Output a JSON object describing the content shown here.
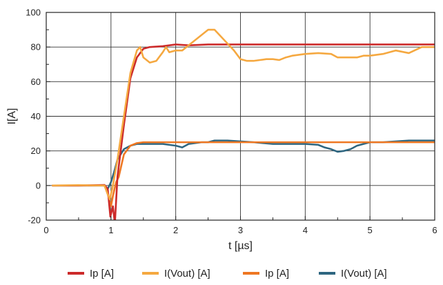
{
  "chart_data": {
    "type": "line",
    "xlabel": "t [µs]",
    "ylabel": "I[A]",
    "xlim": [
      0,
      6
    ],
    "ylim": [
      -20,
      100
    ],
    "x_ticks": [
      "0",
      "1",
      "2",
      "3",
      "4",
      "5",
      "6"
    ],
    "y_ticks": [
      "-20",
      "0",
      "20",
      "40",
      "60",
      "80",
      "100"
    ],
    "grid": true,
    "legend_position": "bottom",
    "series": [
      {
        "name": "Ip [A]",
        "color": "#cc2a2a",
        "points": [
          [
            0.1,
            0
          ],
          [
            0.5,
            0
          ],
          [
            0.9,
            0.3
          ],
          [
            0.95,
            -2
          ],
          [
            0.99,
            -18
          ],
          [
            1.03,
            -12
          ],
          [
            1.06,
            -22
          ],
          [
            1.1,
            5
          ],
          [
            1.2,
            35
          ],
          [
            1.3,
            62
          ],
          [
            1.4,
            74
          ],
          [
            1.5,
            79
          ],
          [
            1.6,
            80
          ],
          [
            1.8,
            80.5
          ],
          [
            2.0,
            81.5
          ],
          [
            2.2,
            81
          ],
          [
            2.5,
            81.5
          ],
          [
            3.0,
            81.5
          ],
          [
            3.5,
            81.5
          ],
          [
            4.0,
            81.5
          ],
          [
            4.5,
            81.5
          ],
          [
            5.0,
            81.5
          ],
          [
            5.5,
            81.5
          ],
          [
            6.0,
            81.5
          ]
        ]
      },
      {
        "name": "I(Vout) [A]",
        "color": "#f5a840",
        "points": [
          [
            0.1,
            0
          ],
          [
            0.5,
            0.2
          ],
          [
            0.9,
            0
          ],
          [
            0.98,
            -8
          ],
          [
            1.02,
            -2
          ],
          [
            1.1,
            15
          ],
          [
            1.2,
            40
          ],
          [
            1.3,
            65
          ],
          [
            1.4,
            78
          ],
          [
            1.45,
            80
          ],
          [
            1.5,
            74
          ],
          [
            1.6,
            71
          ],
          [
            1.7,
            72
          ],
          [
            1.8,
            77
          ],
          [
            1.85,
            80
          ],
          [
            1.9,
            77
          ],
          [
            2.0,
            78
          ],
          [
            2.1,
            78
          ],
          [
            2.2,
            81
          ],
          [
            2.3,
            84
          ],
          [
            2.4,
            87
          ],
          [
            2.5,
            90
          ],
          [
            2.6,
            90
          ],
          [
            2.7,
            86
          ],
          [
            2.8,
            82
          ],
          [
            2.9,
            78
          ],
          [
            3.0,
            73
          ],
          [
            3.1,
            72
          ],
          [
            3.2,
            72
          ],
          [
            3.3,
            72.5
          ],
          [
            3.4,
            73
          ],
          [
            3.5,
            73
          ],
          [
            3.6,
            72.5
          ],
          [
            3.7,
            74
          ],
          [
            3.8,
            75
          ],
          [
            4.0,
            76
          ],
          [
            4.2,
            76.5
          ],
          [
            4.4,
            76
          ],
          [
            4.5,
            74
          ],
          [
            4.6,
            74
          ],
          [
            4.8,
            74
          ],
          [
            4.9,
            75
          ],
          [
            5.0,
            75
          ],
          [
            5.2,
            76
          ],
          [
            5.4,
            78
          ],
          [
            5.6,
            76.5
          ],
          [
            5.8,
            80
          ],
          [
            6.0,
            80
          ]
        ]
      },
      {
        "name": "Ip [A]",
        "color": "#ee7722",
        "points": [
          [
            0.1,
            0
          ],
          [
            0.5,
            0
          ],
          [
            0.9,
            0
          ],
          [
            0.95,
            -5
          ],
          [
            1.0,
            -12
          ],
          [
            1.03,
            -6
          ],
          [
            1.08,
            2
          ],
          [
            1.12,
            5
          ],
          [
            1.2,
            18
          ],
          [
            1.3,
            23
          ],
          [
            1.4,
            24.5
          ],
          [
            1.5,
            25
          ],
          [
            1.7,
            25
          ],
          [
            2.0,
            25
          ],
          [
            2.5,
            25
          ],
          [
            3.0,
            25
          ],
          [
            3.5,
            25
          ],
          [
            4.0,
            25
          ],
          [
            4.5,
            25
          ],
          [
            5.0,
            25
          ],
          [
            5.5,
            25
          ],
          [
            6.0,
            25
          ]
        ]
      },
      {
        "name": "I(Vout) [A]",
        "color": "#2e6680",
        "points": [
          [
            0.1,
            0
          ],
          [
            0.5,
            0
          ],
          [
            0.9,
            0
          ],
          [
            0.95,
            -2
          ],
          [
            1.0,
            2
          ],
          [
            1.05,
            8
          ],
          [
            1.1,
            15
          ],
          [
            1.2,
            21
          ],
          [
            1.3,
            23
          ],
          [
            1.4,
            24
          ],
          [
            1.6,
            24
          ],
          [
            1.8,
            24
          ],
          [
            2.0,
            23
          ],
          [
            2.1,
            22
          ],
          [
            2.2,
            24
          ],
          [
            2.4,
            25
          ],
          [
            2.5,
            25
          ],
          [
            2.6,
            26
          ],
          [
            2.8,
            26
          ],
          [
            3.0,
            25.5
          ],
          [
            3.2,
            25
          ],
          [
            3.5,
            24
          ],
          [
            3.8,
            24
          ],
          [
            4.0,
            24
          ],
          [
            4.2,
            23.5
          ],
          [
            4.3,
            22
          ],
          [
            4.4,
            21
          ],
          [
            4.5,
            19.5
          ],
          [
            4.6,
            20
          ],
          [
            4.7,
            21
          ],
          [
            4.8,
            23
          ],
          [
            5.0,
            25
          ],
          [
            5.2,
            25
          ],
          [
            5.4,
            25.5
          ],
          [
            5.6,
            26
          ],
          [
            5.8,
            26
          ],
          [
            6.0,
            26
          ]
        ]
      }
    ]
  }
}
